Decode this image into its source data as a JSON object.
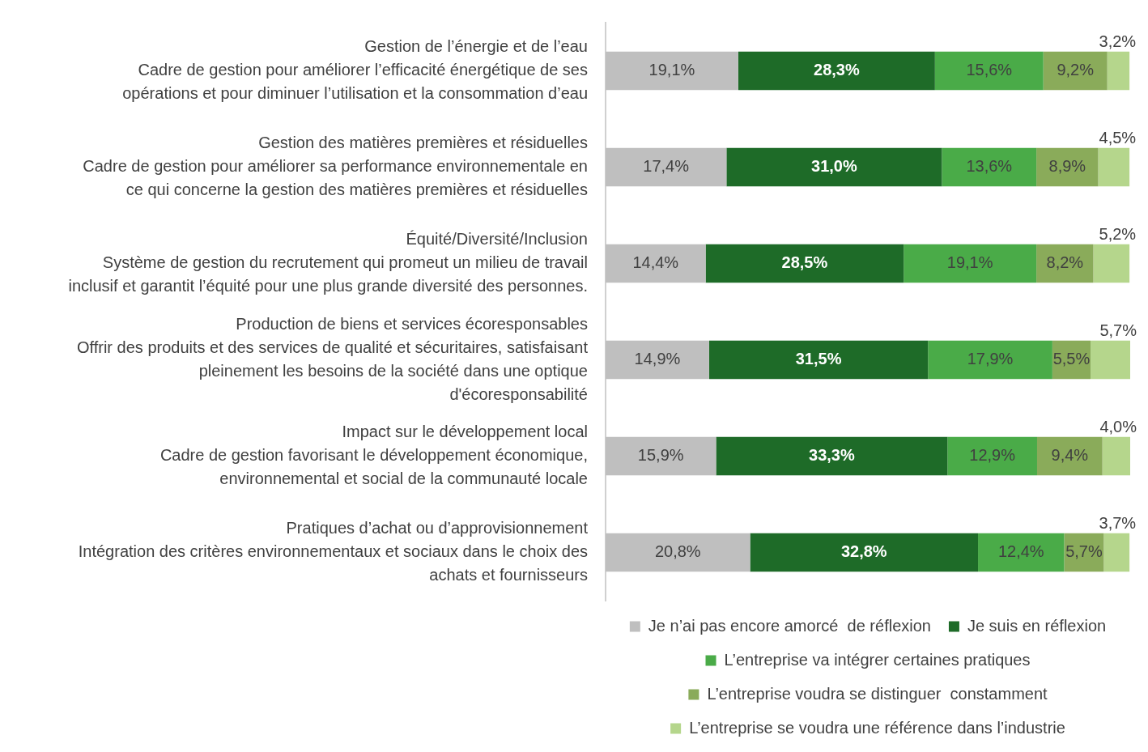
{
  "chart_data": {
    "type": "bar",
    "orientation": "horizontal",
    "stacked": true,
    "legend": "bottom",
    "categories": [
      "Gestion de l’énergie et de l’eau\nCadre de gestion pour améliorer l’efficacité énergétique de ses\nopérations et pour diminuer l’utilisation et la consommation d’eau",
      "Gestion des matières premières et résiduelles\nCadre de gestion pour améliorer sa performance environnementale en\nce qui concerne la gestion des matières premières et résiduelles",
      "Équité/Diversité/Inclusion\nSystème de gestion du recrutement qui promeut un milieu de travail\ninclusif et garantit l’équité pour une plus grande diversité des personnes.",
      "Production de biens et services écoresponsables\nOffrir des produits et des services de qualité et sécuritaires, satisfaisant\npleinement les besoins de la société dans une optique\nd'écoresponsabilité",
      "Impact sur le développement local\nCadre de gestion favorisant le développement économique,\nenvironnemental et social de la communauté locale",
      "Pratiques d’achat ou d’approvisionnement\nIntégration des critères environnementaux et sociaux dans le choix des\nachats et fournisseurs"
    ],
    "series": [
      {
        "name": "Je n’ai pas encore amorcé  de réflexion",
        "color": "#bfbfbf",
        "values": [
          19.1,
          17.4,
          14.4,
          14.9,
          15.9,
          20.8
        ],
        "value_labels": [
          "19,1%",
          "17,4%",
          "14,4%",
          "14,9%",
          "15,9%",
          "20,8%"
        ]
      },
      {
        "name": "Je suis en réflexion",
        "color": "#1e6b28",
        "values": [
          28.3,
          31.0,
          28.5,
          31.5,
          33.3,
          32.8
        ],
        "value_labels": [
          "28,3%",
          "31,0%",
          "28,5%",
          "31,5%",
          "33,3%",
          "32,8%"
        ]
      },
      {
        "name": "L’entreprise va intégrer certaines pratiques",
        "color": "#4aab48",
        "values": [
          15.6,
          13.6,
          19.1,
          17.9,
          12.9,
          12.4
        ],
        "value_labels": [
          "15,6%",
          "13,6%",
          "19,1%",
          "17,9%",
          "12,9%",
          "12,4%"
        ]
      },
      {
        "name": "L’entreprise voudra se distinguer  constamment",
        "color": "#8aab5a",
        "values": [
          9.2,
          8.9,
          8.2,
          5.5,
          9.4,
          5.7
        ],
        "value_labels": [
          "9,2%",
          "8,9%",
          "8,2%",
          "5,5%",
          "9,4%",
          "5,7%"
        ]
      },
      {
        "name": "L’entreprise se voudra une référence dans l’industrie",
        "color": "#b5d68c",
        "values": [
          3.2,
          4.5,
          5.2,
          5.7,
          4.0,
          3.7
        ],
        "value_labels": [
          "3,2%",
          "4,5%",
          "5,2%",
          "5,7%",
          "4,0%",
          "3,7%"
        ]
      }
    ]
  }
}
